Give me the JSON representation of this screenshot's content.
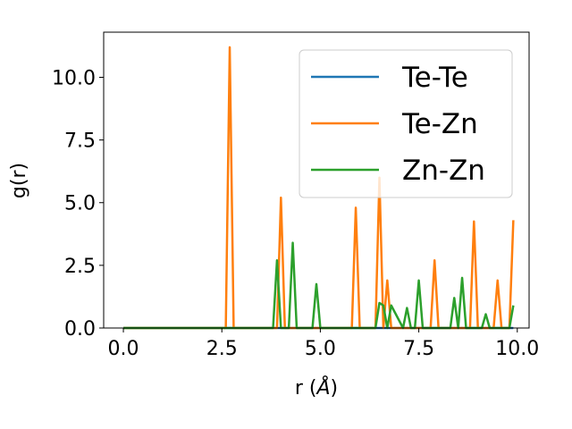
{
  "chart_data": {
    "type": "line",
    "xlabel_prefix": "r (",
    "xlabel_unit": "Å",
    "xlabel_suffix": ")",
    "ylabel": "g(r)",
    "xlim": [
      -0.5,
      10.3
    ],
    "ylim": [
      0,
      11.8
    ],
    "xticks": [
      0.0,
      2.5,
      5.0,
      7.5,
      10.0
    ],
    "xtick_labels": [
      "0.0",
      "2.5",
      "5.0",
      "7.5",
      "10.0"
    ],
    "yticks": [
      0.0,
      2.5,
      5.0,
      7.5,
      10.0
    ],
    "ytick_labels": [
      "0.0",
      "2.5",
      "5.0",
      "7.5",
      "10.0"
    ],
    "grid": false,
    "legend_position": "upper-right",
    "series": [
      {
        "name": "Te-Te",
        "color": "#1f77b4",
        "x": [
          0.0,
          9.9
        ],
        "y": [
          0.0,
          0.0
        ]
      },
      {
        "name": "Te-Zn",
        "color": "#ff7f0e",
        "x": [
          0.0,
          2.6,
          2.7,
          2.8,
          3.9,
          4.0,
          4.1,
          5.8,
          5.9,
          6.0,
          6.4,
          6.5,
          6.6,
          6.7,
          6.8,
          7.8,
          7.9,
          8.0,
          8.8,
          8.9,
          9.0,
          9.4,
          9.5,
          9.6,
          9.8,
          9.9
        ],
        "y": [
          0.0,
          0.0,
          11.2,
          0.0,
          0.0,
          5.2,
          0.0,
          0.0,
          4.8,
          0.0,
          0.0,
          6.0,
          0.0,
          1.9,
          0.0,
          0.0,
          2.7,
          0.0,
          0.0,
          4.25,
          0.0,
          0.0,
          1.9,
          0.0,
          0.0,
          4.3
        ]
      },
      {
        "name": "Zn-Zn",
        "color": "#2ca02c",
        "x": [
          0.0,
          3.8,
          3.9,
          4.0,
          4.2,
          4.3,
          4.4,
          4.8,
          4.9,
          5.0,
          6.4,
          6.5,
          6.6,
          6.7,
          6.8,
          7.1,
          7.2,
          7.3,
          7.4,
          7.5,
          7.6,
          8.3,
          8.4,
          8.5,
          8.6,
          8.7,
          9.1,
          9.2,
          9.3,
          9.8,
          9.9
        ],
        "y": [
          0.0,
          0.0,
          2.7,
          0.0,
          0.0,
          3.4,
          0.0,
          0.0,
          1.75,
          0.0,
          0.0,
          1.0,
          0.9,
          0.0,
          0.9,
          0.0,
          0.8,
          0.0,
          0.0,
          1.9,
          0.0,
          0.0,
          1.2,
          0.0,
          2.0,
          0.0,
          0.0,
          0.55,
          0.0,
          0.0,
          0.9
        ]
      }
    ]
  }
}
